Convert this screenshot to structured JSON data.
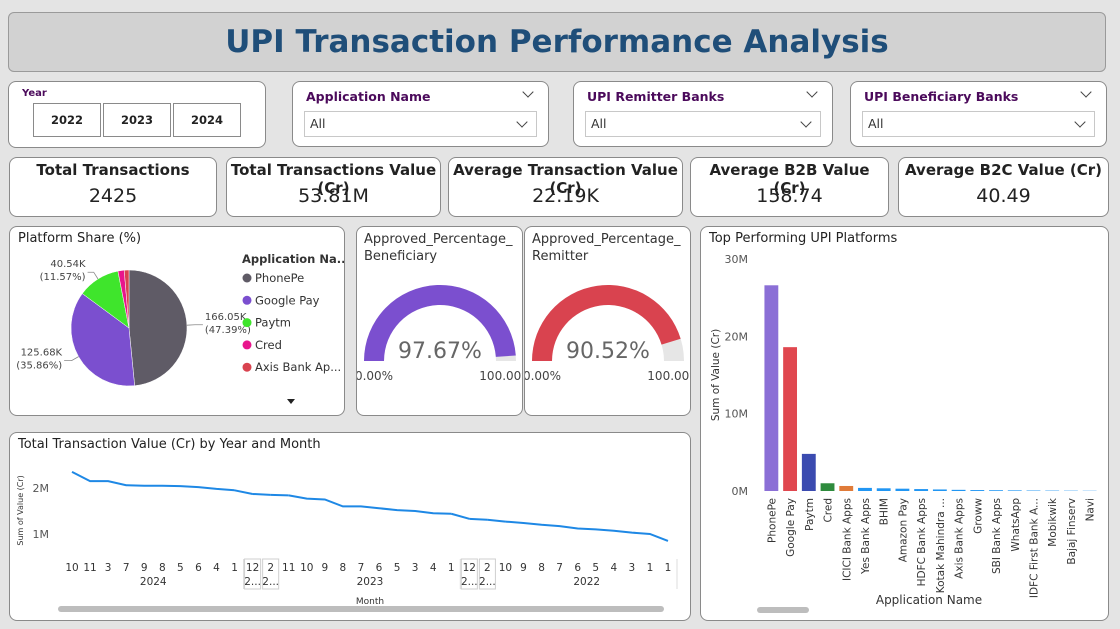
{
  "title": "UPI Transaction Performance Analysis",
  "slicers": {
    "year": {
      "label": "Year",
      "options": [
        "2022",
        "2023",
        "2024"
      ]
    },
    "dropdowns": [
      {
        "label": "Application Name",
        "value": "All"
      },
      {
        "label": "UPI Remitter Banks",
        "value": "All"
      },
      {
        "label": "UPI Beneficiary Banks",
        "value": "All"
      }
    ]
  },
  "kpis": [
    {
      "label": "Total Transactions",
      "value": "2425"
    },
    {
      "label": "Total Transactions Value (Cr)",
      "value": "53.81M"
    },
    {
      "label": "Average Transaction Value (Cr)",
      "value": "22.19K"
    },
    {
      "label": "Average B2B Value (Cr)",
      "value": "158.74"
    },
    {
      "label": "Average B2C Value (Cr)",
      "value": "40.49"
    }
  ],
  "chart_data": [
    {
      "type": "pie",
      "title": "Platform Share (%)",
      "legend_title": "Application Na...",
      "categories": [
        "PhonePe",
        "Google Pay",
        "Paytm",
        "Cred",
        "Axis Bank Ap..."
      ],
      "values": [
        166050,
        125680,
        40540,
        6000,
        4500
      ],
      "value_labels": [
        "166.05K",
        "125.68K",
        "40.54K",
        null,
        null
      ],
      "percent_labels": [
        "(47.39%)",
        "(35.86%)",
        "(11.57%)",
        null,
        null
      ],
      "colors": [
        "#5f5b66",
        "#7b4fcf",
        "#3fe52c",
        "#e8168c",
        "#d9434f"
      ]
    },
    {
      "type": "gauge",
      "title": "Approved_Percentage_Beneficiary",
      "values": [
        97.67
      ],
      "value_labels": [
        "97.67%"
      ],
      "ylim": [
        0,
        100
      ],
      "yticks": [
        {
          "value": 0,
          "label": "0.00%"
        },
        {
          "value": 100,
          "label": "100.00%"
        }
      ],
      "color": "#7b4fcf",
      "track_color": "#e6e6e6"
    },
    {
      "type": "gauge",
      "title": "Approved_Percentage_Remitter",
      "values": [
        90.52
      ],
      "value_labels": [
        "90.52%"
      ],
      "ylim": [
        0,
        100
      ],
      "yticks": [
        {
          "value": 0,
          "label": "0.00%"
        },
        {
          "value": 100,
          "label": "100.00%"
        }
      ],
      "color": "#d9434f",
      "track_color": "#e6e6e6"
    },
    {
      "type": "bar",
      "title": "Top Performing UPI Platforms",
      "x_label": "Application Name",
      "y_label": "Sum of Value (Cr)",
      "categories": [
        "PhonePe",
        "Google Pay",
        "Paytm",
        "Cred",
        "ICICI Bank Apps",
        "Yes Bank Apps",
        "BHIM",
        "Amazon Pay",
        "HDFC Bank Apps",
        "Kotak Mahindra ...",
        "Axis Bank Apps",
        "Groww",
        "SBI Bank Apps",
        "WhatsApp",
        "IDFC First Bank A...",
        "Mobikwik",
        "Bajaj Finserv",
        "Navi"
      ],
      "values": [
        26600000,
        18600000,
        4800000,
        1000000,
        650000,
        400000,
        350000,
        300000,
        250000,
        200000,
        150000,
        120000,
        100000,
        80000,
        60000,
        50000,
        40000,
        30000
      ],
      "colors": [
        "#8b6fd6",
        "#e0474f",
        "#3b4bb0",
        "#2e8b3d",
        "#e07b39",
        "#2196f3",
        "#2196f3",
        "#2196f3",
        "#2196f3",
        "#2196f3",
        "#2196f3",
        "#2196f3",
        "#2196f3",
        "#2196f3",
        "#2196f3",
        "#2196f3",
        "#2196f3",
        "#2196f3"
      ],
      "ylim": [
        0,
        30000000
      ],
      "yticks": [
        {
          "value": 0,
          "label": "0M"
        },
        {
          "value": 10000000,
          "label": "10M"
        },
        {
          "value": 20000000,
          "label": "20M"
        },
        {
          "value": 30000000,
          "label": "30M"
        }
      ]
    },
    {
      "type": "line",
      "title": "Total Transaction Value (Cr) by Year and Month",
      "x_label": "Month",
      "y_label": "Sum of Value (Cr)",
      "color": "#1e88e5",
      "ylim": [
        700000,
        2500000
      ],
      "yticks": [
        {
          "value": 1000000,
          "label": "1M"
        },
        {
          "value": 2000000,
          "label": "2M"
        }
      ],
      "groups": [
        {
          "label": "2024",
          "categories": [
            "10",
            "11",
            "3",
            "7",
            "9",
            "8",
            "5",
            "6",
            "4",
            "1"
          ],
          "values": [
            2350000,
            2150000,
            2150000,
            2060000,
            2050000,
            2050000,
            2040000,
            2020000,
            1980000,
            1950000
          ]
        },
        {
          "label": "2...",
          "categories": [
            "12"
          ],
          "values": [
            1870000
          ]
        },
        {
          "label": "2...",
          "categories": [
            "2"
          ],
          "values": [
            1850000
          ]
        },
        {
          "label": "2023",
          "categories": [
            "11",
            "10",
            "9",
            "8",
            "7",
            "6",
            "5",
            "3",
            "4",
            "1"
          ],
          "values": [
            1840000,
            1770000,
            1750000,
            1600000,
            1600000,
            1560000,
            1520000,
            1500000,
            1450000,
            1440000
          ]
        },
        {
          "label": "2...",
          "categories": [
            "12"
          ],
          "values": [
            1330000
          ]
        },
        {
          "label": "2...",
          "categories": [
            "2"
          ],
          "values": [
            1310000
          ]
        },
        {
          "label": "2022",
          "categories": [
            "10",
            "9",
            "8",
            "7",
            "6",
            "5",
            "4",
            "3",
            "1",
            "1"
          ],
          "values": [
            1270000,
            1240000,
            1200000,
            1170000,
            1120000,
            1100000,
            1070000,
            1030000,
            1000000,
            850000
          ]
        }
      ]
    }
  ]
}
